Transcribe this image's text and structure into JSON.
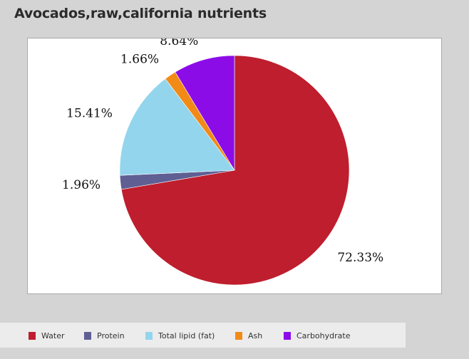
{
  "chart_data": {
    "type": "pie",
    "title": "Avocados,raw,california nutrients",
    "slices": [
      {
        "name": "Water",
        "value": 72.33,
        "label": "72.33%",
        "color": "#be1e2d"
      },
      {
        "name": "Protein",
        "value": 1.96,
        "label": "1.96%",
        "color": "#5f5f94"
      },
      {
        "name": "Total lipid (fat)",
        "value": 15.41,
        "label": "15.41%",
        "color": "#93d5ec"
      },
      {
        "name": "Ash",
        "value": 1.66,
        "label": "1.66%",
        "color": "#f28a18"
      },
      {
        "name": "Carbohydrate",
        "value": 8.64,
        "label": "8.64%",
        "color": "#8c0ce8"
      }
    ],
    "legend_position": "bottom"
  }
}
